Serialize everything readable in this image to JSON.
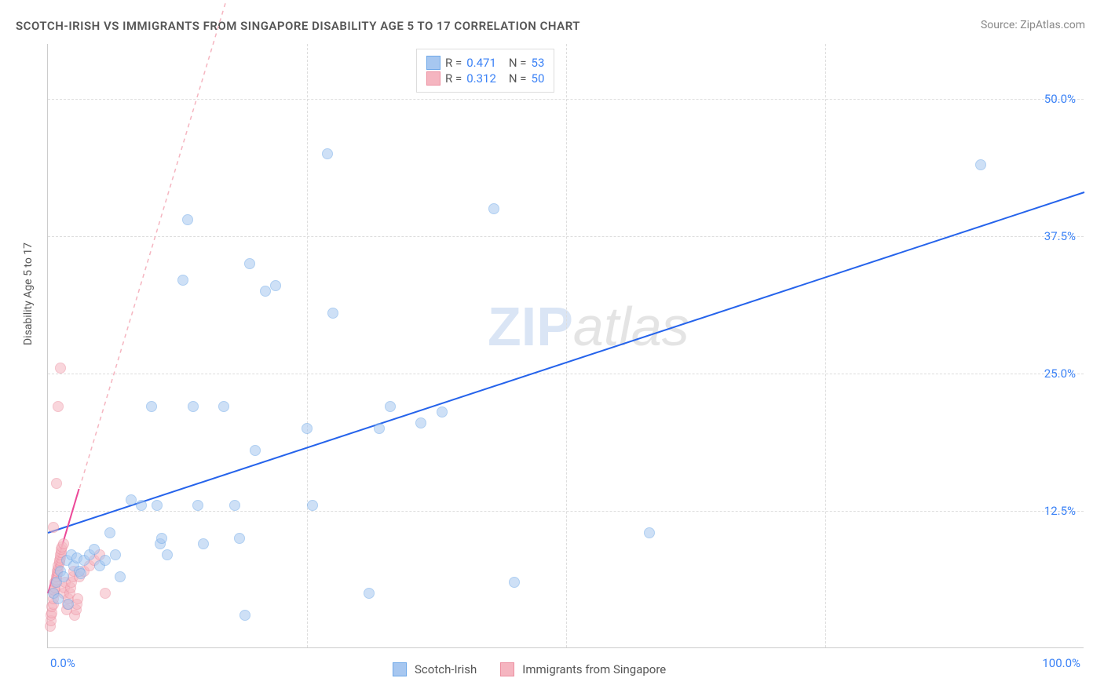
{
  "title": "SCOTCH-IRISH VS IMMIGRANTS FROM SINGAPORE DISABILITY AGE 5 TO 17 CORRELATION CHART",
  "source": {
    "label": "Source:",
    "site": "ZipAtlas.com"
  },
  "y_axis_title": "Disability Age 5 to 17",
  "watermark": {
    "zip": "ZIP",
    "atlas": "atlas"
  },
  "chart": {
    "type": "scatter",
    "xlim": [
      0,
      100
    ],
    "ylim": [
      0,
      55
    ],
    "x_ticks": [
      0,
      100
    ],
    "x_tick_labels": [
      "0.0%",
      "100.0%"
    ],
    "y_ticks": [
      12.5,
      25.0,
      37.5,
      50.0
    ],
    "y_tick_labels": [
      "12.5%",
      "25.0%",
      "37.5%",
      "50.0%"
    ],
    "x_grid": [
      25,
      50,
      75
    ],
    "background_color": "#ffffff",
    "grid_color": "#dddddd",
    "axis_color": "#cccccc",
    "tick_label_color": "#3b82f6",
    "point_radius": 7,
    "series": [
      {
        "name": "Scotch-Irish",
        "color_fill": "#a7c7f0",
        "color_stroke": "#6ea8e8",
        "fill_opacity": 0.55,
        "r": 0.471,
        "n": 53,
        "trend": {
          "x1": 0,
          "y1": 10.5,
          "x2": 100,
          "y2": 41.5,
          "color": "#2563eb",
          "width": 2,
          "dash": "none"
        },
        "points": [
          [
            0.5,
            5.0
          ],
          [
            0.8,
            6.0
          ],
          [
            1.0,
            4.5
          ],
          [
            1.2,
            7.0
          ],
          [
            1.5,
            6.5
          ],
          [
            1.8,
            8.0
          ],
          [
            2.0,
            4.0
          ],
          [
            2.3,
            8.5
          ],
          [
            2.5,
            7.5
          ],
          [
            2.8,
            8.2
          ],
          [
            3.0,
            7.0
          ],
          [
            3.2,
            6.8
          ],
          [
            3.5,
            8.0
          ],
          [
            4.0,
            8.5
          ],
          [
            4.5,
            9.0
          ],
          [
            5.0,
            7.5
          ],
          [
            5.5,
            8.0
          ],
          [
            6.0,
            10.5
          ],
          [
            6.5,
            8.5
          ],
          [
            7.0,
            6.5
          ],
          [
            8.0,
            13.5
          ],
          [
            9.0,
            13.0
          ],
          [
            10.0,
            22.0
          ],
          [
            10.5,
            13.0
          ],
          [
            10.8,
            9.5
          ],
          [
            11.0,
            10.0
          ],
          [
            11.5,
            8.5
          ],
          [
            13.0,
            33.5
          ],
          [
            13.5,
            39.0
          ],
          [
            14.0,
            22.0
          ],
          [
            14.5,
            13.0
          ],
          [
            15.0,
            9.5
          ],
          [
            17.0,
            22.0
          ],
          [
            18.0,
            13.0
          ],
          [
            18.5,
            10.0
          ],
          [
            19.0,
            3.0
          ],
          [
            19.5,
            35.0
          ],
          [
            20.0,
            18.0
          ],
          [
            21.0,
            32.5
          ],
          [
            22.0,
            33.0
          ],
          [
            25.0,
            20.0
          ],
          [
            25.5,
            13.0
          ],
          [
            27.0,
            45.0
          ],
          [
            27.5,
            30.5
          ],
          [
            31.0,
            5.0
          ],
          [
            32.0,
            20.0
          ],
          [
            33.0,
            22.0
          ],
          [
            36.0,
            20.5
          ],
          [
            38.0,
            21.5
          ],
          [
            43.0,
            40.0
          ],
          [
            45.0,
            6.0
          ],
          [
            58.0,
            10.5
          ],
          [
            90.0,
            44.0
          ]
        ]
      },
      {
        "name": "Immigrants from Singapore",
        "color_fill": "#f5b5c0",
        "color_stroke": "#ec8fa0",
        "fill_opacity": 0.55,
        "r": 0.312,
        "n": 50,
        "trend": {
          "x1": 0,
          "y1": 5.0,
          "x2": 3.0,
          "y2": 14.5,
          "color": "#ec4899",
          "width": 2,
          "dash": "none",
          "ext_x2": 22,
          "ext_y2": 74,
          "ext_dash": "5,5",
          "ext_color": "#f5b5c0"
        },
        "points": [
          [
            0.2,
            2.0
          ],
          [
            0.3,
            2.5
          ],
          [
            0.3,
            3.0
          ],
          [
            0.4,
            3.2
          ],
          [
            0.4,
            3.8
          ],
          [
            0.5,
            4.0
          ],
          [
            0.5,
            4.5
          ],
          [
            0.6,
            5.0
          ],
          [
            0.6,
            5.3
          ],
          [
            0.7,
            5.5
          ],
          [
            0.7,
            6.0
          ],
          [
            0.8,
            6.2
          ],
          [
            0.8,
            6.5
          ],
          [
            0.9,
            6.8
          ],
          [
            0.9,
            7.0
          ],
          [
            1.0,
            7.2
          ],
          [
            1.0,
            7.5
          ],
          [
            1.1,
            7.8
          ],
          [
            1.1,
            8.0
          ],
          [
            1.2,
            8.2
          ],
          [
            1.2,
            8.5
          ],
          [
            1.3,
            8.7
          ],
          [
            1.3,
            9.0
          ],
          [
            1.4,
            9.2
          ],
          [
            1.5,
            9.5
          ],
          [
            1.5,
            5.0
          ],
          [
            1.6,
            5.5
          ],
          [
            1.7,
            6.0
          ],
          [
            1.8,
            3.5
          ],
          [
            1.9,
            4.0
          ],
          [
            2.0,
            4.5
          ],
          [
            2.1,
            5.0
          ],
          [
            2.2,
            5.5
          ],
          [
            2.3,
            6.0
          ],
          [
            2.4,
            6.5
          ],
          [
            2.5,
            7.0
          ],
          [
            2.6,
            3.0
          ],
          [
            2.7,
            3.5
          ],
          [
            2.8,
            4.0
          ],
          [
            2.9,
            4.5
          ],
          [
            0.5,
            11.0
          ],
          [
            0.8,
            15.0
          ],
          [
            1.0,
            22.0
          ],
          [
            1.2,
            25.5
          ],
          [
            3.0,
            6.5
          ],
          [
            3.5,
            7.0
          ],
          [
            4.0,
            7.5
          ],
          [
            4.5,
            8.0
          ],
          [
            5.0,
            8.5
          ],
          [
            5.5,
            5.0
          ]
        ]
      }
    ]
  },
  "legend_top": {
    "rows": [
      {
        "swatch_fill": "#a7c7f0",
        "swatch_stroke": "#6ea8e8",
        "r": "0.471",
        "n": "53"
      },
      {
        "swatch_fill": "#f5b5c0",
        "swatch_stroke": "#ec8fa0",
        "r": "0.312",
        "n": "50"
      }
    ],
    "r_label": "R =",
    "n_label": "N ="
  },
  "legend_bottom": [
    {
      "swatch_fill": "#a7c7f0",
      "swatch_stroke": "#6ea8e8",
      "label": "Scotch-Irish"
    },
    {
      "swatch_fill": "#f5b5c0",
      "swatch_stroke": "#ec8fa0",
      "label": "Immigrants from Singapore"
    }
  ]
}
